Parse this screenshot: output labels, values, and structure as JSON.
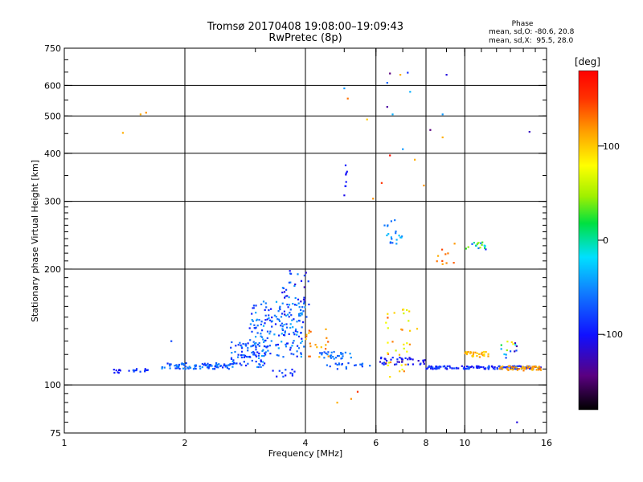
{
  "chart_data": {
    "type": "scatter",
    "title": "Tromsø 20170408 19:08:00–19:09:43",
    "subtitle": "RwPretec (8p)",
    "xlabel": "Frequency [MHz]",
    "ylabel": "Stationary phase Virtual Height [km]",
    "x_scale": "log",
    "y_scale": "log",
    "xlim": [
      1,
      16
    ],
    "ylim": [
      75,
      750
    ],
    "x_ticks": [
      1,
      2,
      4,
      6,
      8,
      10,
      16
    ],
    "y_ticks": [
      75,
      100,
      200,
      300,
      400,
      500,
      600,
      750
    ],
    "x_gridlines": [
      2,
      4,
      6,
      8,
      10
    ],
    "y_gridlines": [
      100,
      200,
      300,
      400,
      500,
      600
    ],
    "colorbar": {
      "label": "[deg]",
      "ticks": [
        100,
        0,
        -100
      ],
      "range": [
        -180,
        180
      ]
    },
    "stats": {
      "title": "Phase",
      "o_line": "mean, sd,O: -80.6, 20.8",
      "x_line": "mean, sd,X:  95.5, 28.0"
    },
    "series": [
      {
        "clusters": [
          {
            "fmin": 1.32,
            "fmax": 1.38,
            "hmin": 107,
            "hmax": 110,
            "n": 8,
            "pmin": -120,
            "pmax": -100
          },
          {
            "fmin": 1.45,
            "fmax": 1.62,
            "hmin": 108,
            "hmax": 111,
            "n": 14,
            "pmin": -110,
            "pmax": -80
          },
          {
            "fmin": 1.75,
            "fmax": 2.6,
            "hmin": 110,
            "hmax": 114,
            "n": 90,
            "pmin": -105,
            "pmax": -60
          },
          {
            "fmin": 2.6,
            "fmax": 3.2,
            "hmin": 111,
            "hmax": 130,
            "n": 80,
            "pmin": -110,
            "pmax": -55
          },
          {
            "fmin": 2.9,
            "fmax": 4.0,
            "hmin": 118,
            "hmax": 165,
            "n": 170,
            "pmin": -110,
            "pmax": -50
          },
          {
            "fmin": 3.5,
            "fmax": 4.1,
            "hmin": 150,
            "hmax": 200,
            "n": 40,
            "pmin": -130,
            "pmax": -60
          },
          {
            "fmin": 3.3,
            "fmax": 3.8,
            "hmin": 105,
            "hmax": 110,
            "n": 12,
            "pmin": -110,
            "pmax": -80
          },
          {
            "fmin": 4.0,
            "fmax": 4.6,
            "hmin": 118,
            "hmax": 140,
            "n": 20,
            "pmin": 100,
            "pmax": 140
          },
          {
            "fmin": 4.3,
            "fmax": 5.2,
            "hmin": 117,
            "hmax": 122,
            "n": 30,
            "pmin": -90,
            "pmax": -60
          },
          {
            "fmin": 4.5,
            "fmax": 5.8,
            "hmin": 110,
            "hmax": 114,
            "n": 20,
            "pmin": -100,
            "pmax": -70
          },
          {
            "fmin": 5.0,
            "fmax": 5.1,
            "hmin": 310,
            "hmax": 380,
            "n": 8,
            "pmin": -120,
            "pmax": -100
          },
          {
            "fmin": 6.3,
            "fmax": 7.0,
            "hmin": 230,
            "hmax": 270,
            "n": 20,
            "pmin": -90,
            "pmax": -40
          },
          {
            "fmin": 6.3,
            "fmax": 7.3,
            "hmin": 108,
            "hmax": 160,
            "n": 35,
            "pmin": 60,
            "pmax": 140
          },
          {
            "fmin": 6.1,
            "fmax": 8.0,
            "hmin": 113,
            "hmax": 118,
            "n": 40,
            "pmin": -130,
            "pmax": -90
          },
          {
            "fmin": 8.5,
            "fmax": 9.5,
            "hmin": 200,
            "hmax": 235,
            "n": 10,
            "pmin": 110,
            "pmax": 150
          },
          {
            "fmin": 10.0,
            "fmax": 11.5,
            "hmin": 225,
            "hmax": 235,
            "n": 18,
            "pmin": -120,
            "pmax": 70
          },
          {
            "fmin": 8.0,
            "fmax": 15.5,
            "hmin": 110,
            "hmax": 112,
            "n": 150,
            "pmin": -120,
            "pmax": -80
          },
          {
            "fmin": 10.0,
            "fmax": 11.5,
            "hmin": 118,
            "hmax": 122,
            "n": 30,
            "pmin": 90,
            "pmax": 120
          },
          {
            "fmin": 12.0,
            "fmax": 15.5,
            "hmin": 109,
            "hmax": 112,
            "n": 50,
            "pmin": 100,
            "pmax": 130
          },
          {
            "fmin": 12.2,
            "fmax": 13.5,
            "hmin": 115,
            "hmax": 130,
            "n": 15,
            "pmin": -150,
            "pmax": 100
          }
        ],
        "points": [
          {
            "f": 1.4,
            "h": 452,
            "p": 110
          },
          {
            "f": 1.55,
            "h": 505,
            "p": 110
          },
          {
            "f": 1.6,
            "h": 510,
            "p": 120
          },
          {
            "f": 1.85,
            "h": 130,
            "p": -90
          },
          {
            "f": 5.0,
            "h": 590,
            "p": -60
          },
          {
            "f": 5.1,
            "h": 555,
            "p": 130
          },
          {
            "f": 5.7,
            "h": 490,
            "p": 100
          },
          {
            "f": 6.5,
            "h": 645,
            "p": -150
          },
          {
            "f": 7.2,
            "h": 648,
            "p": -100
          },
          {
            "f": 7.3,
            "h": 578,
            "p": -50
          },
          {
            "f": 9.0,
            "h": 640,
            "p": -120
          },
          {
            "f": 6.4,
            "h": 610,
            "p": -80
          },
          {
            "f": 6.9,
            "h": 640,
            "p": 110
          },
          {
            "f": 6.4,
            "h": 528,
            "p": -140
          },
          {
            "f": 6.6,
            "h": 505,
            "p": -50
          },
          {
            "f": 8.8,
            "h": 505,
            "p": -60
          },
          {
            "f": 8.2,
            "h": 460,
            "p": -150
          },
          {
            "f": 8.8,
            "h": 440,
            "p": 110
          },
          {
            "f": 6.5,
            "h": 395,
            "p": 170
          },
          {
            "f": 7.0,
            "h": 410,
            "p": -60
          },
          {
            "f": 7.5,
            "h": 385,
            "p": 110
          },
          {
            "f": 5.9,
            "h": 305,
            "p": 120
          },
          {
            "f": 6.2,
            "h": 335,
            "p": 150
          },
          {
            "f": 7.9,
            "h": 330,
            "p": 120
          },
          {
            "f": 14.5,
            "h": 455,
            "p": -130
          },
          {
            "f": 4.8,
            "h": 90,
            "p": 110
          },
          {
            "f": 5.2,
            "h": 92,
            "p": 120
          },
          {
            "f": 5.4,
            "h": 96,
            "p": 150
          },
          {
            "f": 13.5,
            "h": 80,
            "p": -120
          },
          {
            "f": 6.5,
            "h": 105,
            "p": 90
          },
          {
            "f": 7.6,
            "h": 140,
            "p": 100
          }
        ]
      }
    ]
  }
}
